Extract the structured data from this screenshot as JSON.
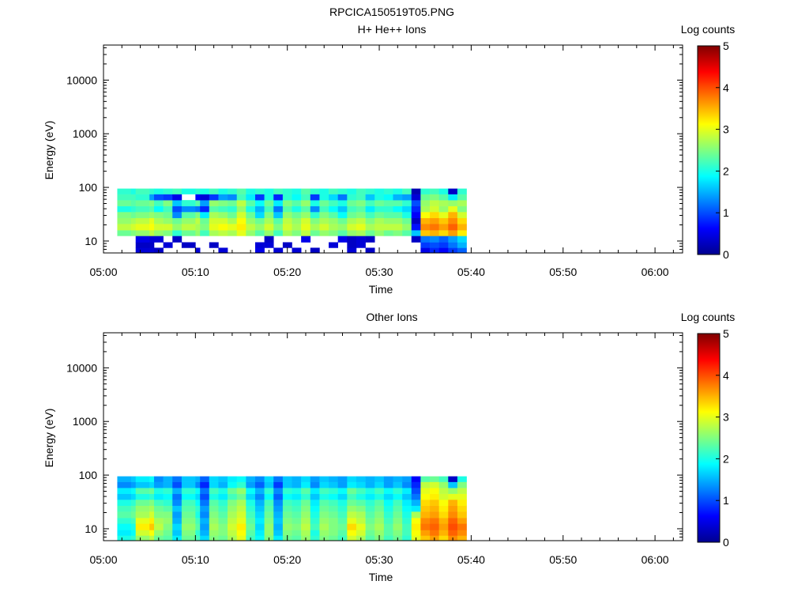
{
  "figure_title": "RPCICA150519T05.PNG",
  "chart_data": [
    {
      "type": "heatmap",
      "title": "H+ He++ Ions",
      "xlabel": "Time",
      "ylabel": "Energy (eV)",
      "x_ticks": [
        "05:00",
        "05:10",
        "05:20",
        "05:30",
        "05:40",
        "05:50",
        "06:00"
      ],
      "x_range": [
        "05:00",
        "06:03"
      ],
      "y_scale": "log",
      "y_ticks": [
        "10",
        "100",
        "1000",
        "10000"
      ],
      "y_range": [
        6,
        45000
      ],
      "colorbar_label": "Log counts",
      "colorbar_ticks": [
        "0",
        "1",
        "2",
        "3",
        "4",
        "5"
      ],
      "colorbar_range": [
        0,
        5
      ],
      "colormap": "jet",
      "time_bins_minutes": [
        1.5,
        3.0,
        3.5,
        5.0,
        5.5,
        6.5,
        7.5,
        8.5,
        10.0,
        10.5,
        11.5,
        12.5,
        13.5,
        14.5,
        15.5,
        16.5,
        17.5,
        18.5,
        19.5,
        20.5,
        21.5,
        22.5,
        23.5,
        24.5,
        25.5,
        26.5,
        27.5,
        28.5,
        29.5,
        30.5,
        31.5,
        32.5,
        33.5,
        34.5,
        35.5,
        36.5,
        37.5,
        38.5
      ],
      "energy_edges_ev": [
        6,
        7.5,
        9.5,
        12.5,
        16,
        21,
        27,
        35,
        45,
        58,
        75,
        95
      ],
      "values": [
        [
          null,
          null,
          null,
          2.4,
          2.8,
          2.6,
          2.5,
          2.0,
          2.4,
          2.2,
          2.1
        ],
        [
          null,
          null,
          null,
          2.5,
          2.9,
          2.7,
          2.4,
          2.1,
          2.3,
          2.2,
          2.0
        ],
        [
          0.4,
          0.3,
          0.5,
          2.6,
          3.0,
          2.8,
          2.5,
          2.2,
          2.4,
          2.1,
          2.2
        ],
        [
          0.4,
          0.3,
          0.4,
          2.8,
          3.1,
          3.0,
          2.6,
          2.3,
          2.5,
          1.4,
          2.1
        ],
        [
          0.3,
          null,
          0.4,
          2.6,
          2.9,
          2.7,
          2.5,
          1.9,
          2.2,
          1.0,
          2.0
        ],
        [
          null,
          0.4,
          null,
          2.5,
          2.9,
          2.6,
          2.4,
          2.2,
          2.5,
          0.9,
          2.1
        ],
        [
          null,
          null,
          0.3,
          2.1,
          2.6,
          2.4,
          1.3,
          1.0,
          1.6,
          0.5,
          2.2
        ],
        [
          null,
          0.3,
          null,
          2.4,
          2.8,
          2.6,
          2.3,
          1.3,
          2.1,
          null,
          2.0
        ],
        [
          0.4,
          null,
          null,
          2.6,
          2.7,
          2.8,
          2.5,
          1.2,
          2.3,
          0.6,
          2.1
        ],
        [
          null,
          null,
          null,
          2.2,
          2.5,
          2.4,
          1.8,
          0.8,
          1.4,
          0.4,
          2.0
        ],
        [
          null,
          0.3,
          null,
          2.7,
          3.0,
          2.9,
          2.7,
          2.3,
          2.6,
          0.9,
          2.2
        ],
        [
          0.4,
          null,
          null,
          2.8,
          3.1,
          2.9,
          2.6,
          2.2,
          2.5,
          1.4,
          2.0
        ],
        [
          null,
          null,
          null,
          2.7,
          3.0,
          2.7,
          2.4,
          2.1,
          2.4,
          1.3,
          2.1
        ],
        [
          null,
          null,
          null,
          3.0,
          3.2,
          3.1,
          2.9,
          2.6,
          2.8,
          2.2,
          2.3
        ],
        [
          null,
          null,
          null,
          2.6,
          2.8,
          2.6,
          2.4,
          2.0,
          2.3,
          1.8,
          2.0
        ],
        [
          0.5,
          0.4,
          null,
          2.3,
          2.6,
          2.4,
          1.7,
          1.5,
          1.9,
          0.9,
          2.1
        ],
        [
          null,
          0.4,
          0.3,
          2.6,
          2.9,
          2.7,
          2.5,
          2.2,
          2.4,
          2.0,
          2.0
        ],
        [
          0.4,
          null,
          null,
          2.2,
          2.5,
          2.3,
          1.6,
          1.2,
          1.8,
          0.8,
          2.2
        ],
        [
          null,
          0.3,
          null,
          2.7,
          2.9,
          2.8,
          2.6,
          2.3,
          2.5,
          2.1,
          2.1
        ],
        [
          0.4,
          null,
          null,
          2.5,
          2.7,
          2.6,
          2.4,
          2.0,
          2.3,
          1.9,
          2.0
        ],
        [
          null,
          null,
          0.5,
          2.8,
          3.0,
          2.9,
          2.6,
          2.3,
          2.6,
          2.2,
          2.3
        ],
        [
          0.3,
          null,
          null,
          2.4,
          2.7,
          2.5,
          2.1,
          1.3,
          2.0,
          0.9,
          2.1
        ],
        [
          null,
          null,
          null,
          2.6,
          2.9,
          2.7,
          2.5,
          2.2,
          2.4,
          2.0,
          2.0
        ],
        [
          null,
          0.4,
          null,
          2.5,
          2.7,
          2.6,
          2.3,
          1.9,
          2.2,
          1.7,
          2.2
        ],
        [
          null,
          null,
          0.5,
          2.3,
          2.6,
          2.4,
          1.9,
          1.6,
          2.0,
          1.2,
          2.1
        ],
        [
          0.4,
          0.3,
          0.3,
          2.6,
          2.9,
          2.7,
          2.4,
          2.2,
          2.4,
          2.1,
          2.0
        ],
        [
          null,
          0.4,
          0.4,
          2.7,
          3.0,
          2.8,
          2.5,
          2.3,
          2.5,
          2.2,
          2.2
        ],
        [
          0.3,
          null,
          0.3,
          2.4,
          2.7,
          2.5,
          2.2,
          1.8,
          2.2,
          1.6,
          2.1
        ],
        [
          null,
          null,
          null,
          2.6,
          2.8,
          2.7,
          2.4,
          2.1,
          2.4,
          2.0,
          2.0
        ],
        [
          null,
          null,
          null,
          2.4,
          2.8,
          2.6,
          2.3,
          2.1,
          2.3,
          1.9,
          2.1
        ],
        [
          null,
          null,
          null,
          2.5,
          2.8,
          2.6,
          2.3,
          1.9,
          2.3,
          1.5,
          2.0
        ],
        [
          null,
          null,
          null,
          2.3,
          2.6,
          2.4,
          2.0,
          1.7,
          2.1,
          1.4,
          2.2
        ],
        [
          null,
          null,
          0.3,
          1.6,
          0.7,
          0.3,
          0.6,
          0.8,
          1.0,
          0.4,
          0.2
        ],
        [
          0.5,
          0.9,
          1.2,
          3.4,
          3.7,
          3.5,
          3.1,
          2.7,
          2.6,
          2.4,
          2.1
        ],
        [
          0.8,
          1.0,
          1.3,
          3.5,
          3.8,
          3.6,
          3.3,
          2.9,
          2.8,
          2.5,
          2.2
        ],
        [
          0.6,
          0.9,
          1.1,
          3.3,
          3.6,
          3.4,
          3.0,
          2.6,
          2.7,
          2.3,
          2.0
        ],
        [
          0.9,
          1.2,
          1.4,
          3.6,
          3.9,
          3.7,
          3.5,
          3.0,
          2.6,
          1.8,
          0.3
        ],
        [
          1.1,
          1.5,
          1.7,
          3.2,
          3.5,
          3.3,
          2.9,
          2.5,
          2.7,
          2.3,
          2.1
        ]
      ]
    },
    {
      "type": "heatmap",
      "title": "Other Ions",
      "xlabel": "Time",
      "ylabel": "Energy (eV)",
      "x_ticks": [
        "05:00",
        "05:10",
        "05:20",
        "05:30",
        "05:40",
        "05:50",
        "06:00"
      ],
      "x_range": [
        "05:00",
        "06:03"
      ],
      "y_scale": "log",
      "y_ticks": [
        "10",
        "100",
        "1000",
        "10000"
      ],
      "y_range": [
        6,
        45000
      ],
      "colorbar_label": "Log counts",
      "colorbar_ticks": [
        "0",
        "1",
        "2",
        "3",
        "4",
        "5"
      ],
      "colorbar_range": [
        0,
        5
      ],
      "colormap": "jet",
      "time_bins_minutes": [
        1.5,
        3.0,
        3.5,
        5.0,
        5.5,
        6.5,
        7.5,
        8.5,
        10.0,
        10.5,
        11.5,
        12.5,
        13.5,
        14.5,
        15.5,
        16.5,
        17.5,
        18.5,
        19.5,
        20.5,
        21.5,
        22.5,
        23.5,
        24.5,
        25.5,
        26.5,
        27.5,
        28.5,
        29.5,
        30.5,
        31.5,
        32.5,
        33.5,
        34.5,
        35.5,
        36.5,
        37.5,
        38.5
      ],
      "energy_edges_ev": [
        6,
        7.5,
        9.5,
        12.5,
        16,
        21,
        27,
        35,
        45,
        58,
        75,
        95
      ],
      "values": [
        [
          2.0,
          1.8,
          1.9,
          2.1,
          2.3,
          2.2,
          2.0,
          1.6,
          1.8,
          1.3,
          1.5
        ],
        [
          2.1,
          1.9,
          2.0,
          2.2,
          2.4,
          2.3,
          2.1,
          1.7,
          1.9,
          1.4,
          1.6
        ],
        [
          2.6,
          2.9,
          3.2,
          3.0,
          2.7,
          2.6,
          2.4,
          2.0,
          2.3,
          1.6,
          1.8
        ],
        [
          2.8,
          3.1,
          3.4,
          3.2,
          2.9,
          2.7,
          2.5,
          2.1,
          2.4,
          1.7,
          1.9
        ],
        [
          2.4,
          2.6,
          2.8,
          2.7,
          2.5,
          2.4,
          2.2,
          1.8,
          2.0,
          1.4,
          1.3
        ],
        [
          2.3,
          2.4,
          2.5,
          2.6,
          2.5,
          2.3,
          2.1,
          1.9,
          2.1,
          1.5,
          1.5
        ],
        [
          1.8,
          1.6,
          1.7,
          1.5,
          1.4,
          1.6,
          1.3,
          1.2,
          1.5,
          1.0,
          1.2
        ],
        [
          2.4,
          2.5,
          2.6,
          2.5,
          2.4,
          2.3,
          2.2,
          1.9,
          2.1,
          1.6,
          1.6
        ],
        [
          2.2,
          2.1,
          2.3,
          2.2,
          2.0,
          2.1,
          1.9,
          1.7,
          1.9,
          1.3,
          1.5
        ],
        [
          1.7,
          1.5,
          1.4,
          1.5,
          1.3,
          1.4,
          1.2,
          1.0,
          1.2,
          0.8,
          1.1
        ],
        [
          2.5,
          2.6,
          2.7,
          2.6,
          2.5,
          2.4,
          2.3,
          2.0,
          2.2,
          1.7,
          1.7
        ],
        [
          2.4,
          2.5,
          2.5,
          2.4,
          2.3,
          2.2,
          2.1,
          1.8,
          2.0,
          1.5,
          1.6
        ],
        [
          2.7,
          2.8,
          2.9,
          2.8,
          2.7,
          2.6,
          2.5,
          2.2,
          2.4,
          1.9,
          1.8
        ],
        [
          3.0,
          3.1,
          3.2,
          3.0,
          2.9,
          2.8,
          2.7,
          2.4,
          2.6,
          2.1,
          1.9
        ],
        [
          2.2,
          2.3,
          2.4,
          2.3,
          2.2,
          2.1,
          2.0,
          1.7,
          1.9,
          1.4,
          1.5
        ],
        [
          1.9,
          1.8,
          1.7,
          1.8,
          1.7,
          1.6,
          1.5,
          1.3,
          1.5,
          1.1,
          1.3
        ],
        [
          2.5,
          2.6,
          2.6,
          2.5,
          2.4,
          2.3,
          2.2,
          1.9,
          2.1,
          1.6,
          1.7
        ],
        [
          1.8,
          1.6,
          1.5,
          1.6,
          1.5,
          1.4,
          1.3,
          1.1,
          1.3,
          0.9,
          1.2
        ],
        [
          2.4,
          2.5,
          2.6,
          2.5,
          2.4,
          2.3,
          2.2,
          1.9,
          2.1,
          1.6,
          1.6
        ],
        [
          2.3,
          2.4,
          2.5,
          2.4,
          2.3,
          2.2,
          2.1,
          1.8,
          2.0,
          1.5,
          1.5
        ],
        [
          2.6,
          2.7,
          2.8,
          2.7,
          2.6,
          2.5,
          2.4,
          2.1,
          2.3,
          1.8,
          1.7
        ],
        [
          2.1,
          2.0,
          2.2,
          2.1,
          2.0,
          1.9,
          1.8,
          1.6,
          1.8,
          1.3,
          1.4
        ],
        [
          2.5,
          2.6,
          2.7,
          2.6,
          2.5,
          2.4,
          2.3,
          2.0,
          2.2,
          1.7,
          1.6
        ],
        [
          2.4,
          2.5,
          2.5,
          2.5,
          2.4,
          2.3,
          2.2,
          1.9,
          2.1,
          1.6,
          1.5
        ],
        [
          2.2,
          2.3,
          2.4,
          2.3,
          2.2,
          2.1,
          2.0,
          1.7,
          1.9,
          1.4,
          1.4
        ],
        [
          2.9,
          3.1,
          3.3,
          3.0,
          2.8,
          2.6,
          2.4,
          2.2,
          2.4,
          1.8,
          1.7
        ],
        [
          2.7,
          2.9,
          3.0,
          2.8,
          2.7,
          2.5,
          2.3,
          2.0,
          2.2,
          1.7,
          1.6
        ],
        [
          2.3,
          2.4,
          2.5,
          2.4,
          2.3,
          2.2,
          2.1,
          1.8,
          2.0,
          1.5,
          1.5
        ],
        [
          2.5,
          2.6,
          2.7,
          2.6,
          2.5,
          2.4,
          2.3,
          2.0,
          2.2,
          1.7,
          1.6
        ],
        [
          2.2,
          2.3,
          2.3,
          2.2,
          2.1,
          2.0,
          1.9,
          1.7,
          1.9,
          1.4,
          1.4
        ],
        [
          2.4,
          2.5,
          2.6,
          2.5,
          2.4,
          2.3,
          2.2,
          1.9,
          2.1,
          1.6,
          1.5
        ],
        [
          2.1,
          2.2,
          2.2,
          2.1,
          2.0,
          1.9,
          1.8,
          1.6,
          1.8,
          1.3,
          1.4
        ],
        [
          3.0,
          3.1,
          3.2,
          3.1,
          2.7,
          1.8,
          1.5,
          1.2,
          1.0,
          0.8,
          0.6
        ],
        [
          3.4,
          3.6,
          3.8,
          3.7,
          3.5,
          3.4,
          3.3,
          3.1,
          3.0,
          2.8,
          2.3
        ],
        [
          3.6,
          3.8,
          3.9,
          3.8,
          3.6,
          3.5,
          3.4,
          3.2,
          3.1,
          2.9,
          2.4
        ],
        [
          3.3,
          3.5,
          3.6,
          3.5,
          3.3,
          3.2,
          3.1,
          2.9,
          2.8,
          2.6,
          2.2
        ],
        [
          3.7,
          3.9,
          4.0,
          3.9,
          3.7,
          3.6,
          3.5,
          3.0,
          2.6,
          1.6,
          0.3
        ],
        [
          3.5,
          3.7,
          3.8,
          3.6,
          3.4,
          3.3,
          3.2,
          3.0,
          2.8,
          2.5,
          2.0
        ]
      ]
    }
  ]
}
